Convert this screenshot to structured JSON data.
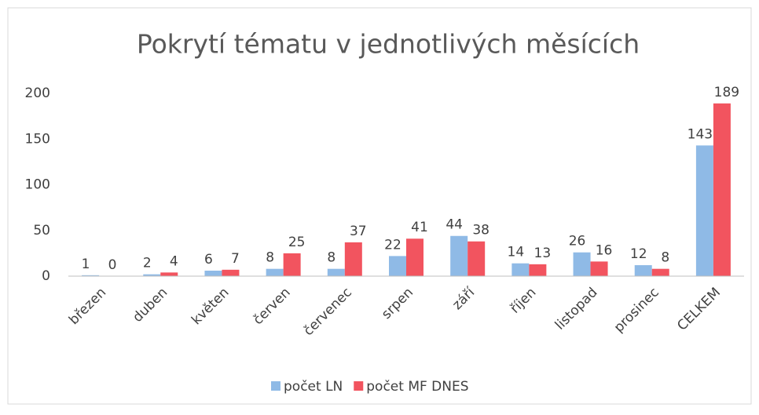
{
  "chart_data": {
    "type": "bar",
    "title": "Pokrytí tématu v jednotlivých měsících",
    "categories": [
      "březen",
      "duben",
      "květen",
      "červen",
      "červenec",
      "srpen",
      "září",
      "říjen",
      "listopad",
      "prosinec",
      "CELKEM"
    ],
    "series": [
      {
        "name": "počet LN",
        "color": "#8fbae6",
        "values": [
          1,
          2,
          6,
          8,
          8,
          22,
          44,
          14,
          26,
          12,
          143
        ]
      },
      {
        "name": "počet MF DNES",
        "color": "#f2545f",
        "values": [
          0,
          4,
          7,
          25,
          37,
          41,
          38,
          13,
          16,
          8,
          189
        ]
      }
    ],
    "ylim": [
      0,
      200
    ],
    "yticks": [
      0,
      50,
      100,
      150,
      200
    ],
    "grid": false,
    "legend": "bottom"
  }
}
